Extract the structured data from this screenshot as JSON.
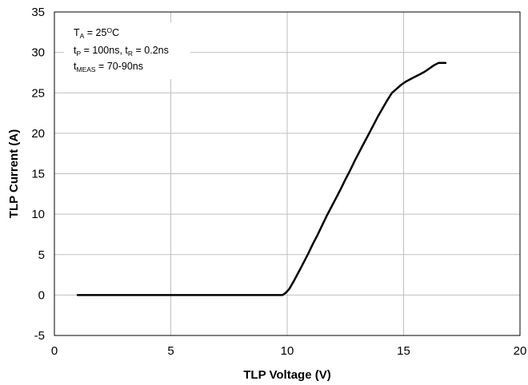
{
  "chart_data": {
    "type": "line",
    "xlabel": "TLP Voltage (V)",
    "ylabel": "TLP Current (A)",
    "xlim": [
      0,
      20
    ],
    "ylim": [
      -5,
      35
    ],
    "x_ticks": [
      0,
      5,
      10,
      15,
      20
    ],
    "y_ticks": [
      -5,
      0,
      5,
      10,
      15,
      20,
      25,
      30,
      35
    ],
    "grid": true,
    "line_color": "#000000",
    "grid_color": "#bfbfbf",
    "annotations": [
      {
        "main": "T",
        "sub": "A",
        "rest": " = 25",
        "sup": "O",
        "tail": "C"
      },
      {
        "main": "t",
        "sub": "P",
        "rest": " = 100ns, t",
        "sub2": "R",
        "rest2": " = 0.2ns"
      },
      {
        "main": "t",
        "sub": "MEAS",
        "rest": " = 70-90ns"
      }
    ],
    "series": [
      {
        "x": [
          1.0,
          3.0,
          5.0,
          7.0,
          9.0,
          9.8,
          9.95,
          10.1,
          10.3,
          10.5,
          10.7,
          10.9,
          11.1,
          11.3,
          11.5,
          11.7,
          11.9,
          12.1,
          12.3,
          12.5,
          12.7,
          12.9,
          13.1,
          13.3,
          13.5,
          13.7,
          13.9,
          14.1,
          14.3,
          14.5,
          14.7,
          14.9,
          15.1,
          15.3,
          15.5,
          15.7,
          15.9,
          16.1,
          16.3,
          16.5,
          16.8
        ],
        "y": [
          0,
          0,
          0,
          0,
          0,
          0,
          0.3,
          0.8,
          1.8,
          2.9,
          4.0,
          5.1,
          6.3,
          7.4,
          8.6,
          9.8,
          10.9,
          12.0,
          13.1,
          14.3,
          15.4,
          16.6,
          17.7,
          18.8,
          19.9,
          21.0,
          22.1,
          23.1,
          24.1,
          25.0,
          25.5,
          26.0,
          26.4,
          26.7,
          27.0,
          27.3,
          27.6,
          28.0,
          28.4,
          28.7,
          28.7
        ]
      }
    ]
  }
}
